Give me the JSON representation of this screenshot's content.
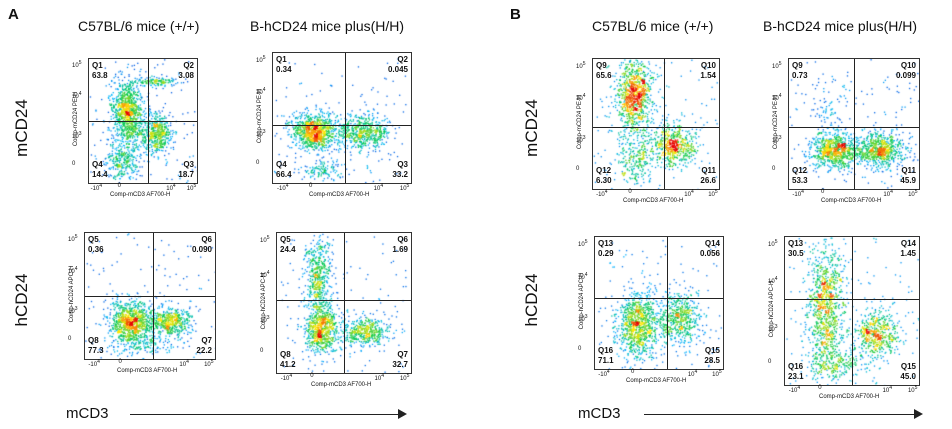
{
  "panelA": {
    "letter": "A",
    "col1_title": "C57BL/6 mice (+/+)",
    "col2_title": "B-hCD24 mice plus(H/H)",
    "row1_label": "mCD24",
    "row2_label": "hCD24",
    "x_axis_label": "mCD3",
    "plots": [
      {
        "ylab": "Comp-mCD24 PE-H",
        "xlab": "Comp-mCD3 AF700-H",
        "q": [
          {
            "n": "Q1",
            "v": "63.8"
          },
          {
            "n": "Q2",
            "v": "3.08"
          },
          {
            "n": "Q3",
            "v": "18.7"
          },
          {
            "n": "Q4",
            "v": "14.4"
          }
        ]
      },
      {
        "ylab": "Comp-mCD24 PE-H",
        "xlab": "Comp-mCD3 AF700-H",
        "q": [
          {
            "n": "Q1",
            "v": "0.34"
          },
          {
            "n": "Q2",
            "v": "0.045"
          },
          {
            "n": "Q3",
            "v": "33.2"
          },
          {
            "n": "Q4",
            "v": "66.4"
          }
        ]
      },
      {
        "ylab": "Comp-hCD24 APC-H",
        "xlab": "Comp-mCD3 AF700-H",
        "q": [
          {
            "n": "Q5",
            "v": "0.36"
          },
          {
            "n": "Q6",
            "v": "0.090"
          },
          {
            "n": "Q7",
            "v": "22.2"
          },
          {
            "n": "Q8",
            "v": "77.3"
          }
        ]
      },
      {
        "ylab": "Comp-hCD24 APC-H",
        "xlab": "Comp-mCD3 AF700-H",
        "q": [
          {
            "n": "Q5",
            "v": "24.4"
          },
          {
            "n": "Q6",
            "v": "1.69"
          },
          {
            "n": "Q7",
            "v": "32.7"
          },
          {
            "n": "Q8",
            "v": "41.2"
          }
        ]
      }
    ]
  },
  "panelB": {
    "letter": "B",
    "col1_title": "C57BL/6 mice (+/+)",
    "col2_title": "B-hCD24 mice plus(H/H)",
    "row1_label": "mCD24",
    "row2_label": "hCD24",
    "x_axis_label": "mCD3",
    "plots": [
      {
        "ylab": "Comp-mCD24 PE-H",
        "xlab": "Comp-mCD3 AF700-H",
        "q": [
          {
            "n": "Q9",
            "v": "65.6"
          },
          {
            "n": "Q10",
            "v": "1.54"
          },
          {
            "n": "Q11",
            "v": "26.6"
          },
          {
            "n": "Q12",
            "v": "6.30"
          }
        ]
      },
      {
        "ylab": "Comp-mCD24 PE-H",
        "xlab": "Comp-mCD3 AF700-H",
        "q": [
          {
            "n": "Q9",
            "v": "0.73"
          },
          {
            "n": "Q10",
            "v": "0.099"
          },
          {
            "n": "Q11",
            "v": "45.9"
          },
          {
            "n": "Q12",
            "v": "53.3"
          }
        ]
      },
      {
        "ylab": "Comp-hCD24 APC-H",
        "xlab": "Comp-mCD3 AF700-H",
        "q": [
          {
            "n": "Q13",
            "v": "0.29"
          },
          {
            "n": "Q14",
            "v": "0.056"
          },
          {
            "n": "Q15",
            "v": "28.5"
          },
          {
            "n": "Q16",
            "v": "71.1"
          }
        ]
      },
      {
        "ylab": "Comp-hCD24 APC-H",
        "xlab": "Comp-mCD3 AF700-H",
        "q": [
          {
            "n": "Q13",
            "v": "30.5"
          },
          {
            "n": "Q14",
            "v": "1.45"
          },
          {
            "n": "Q15",
            "v": "45.0"
          },
          {
            "n": "Q16",
            "v": "23.1"
          }
        ]
      }
    ]
  },
  "ticks": {
    "t0": "0",
    "tneg": "-10",
    "e4": "10",
    "e5": "10"
  }
}
